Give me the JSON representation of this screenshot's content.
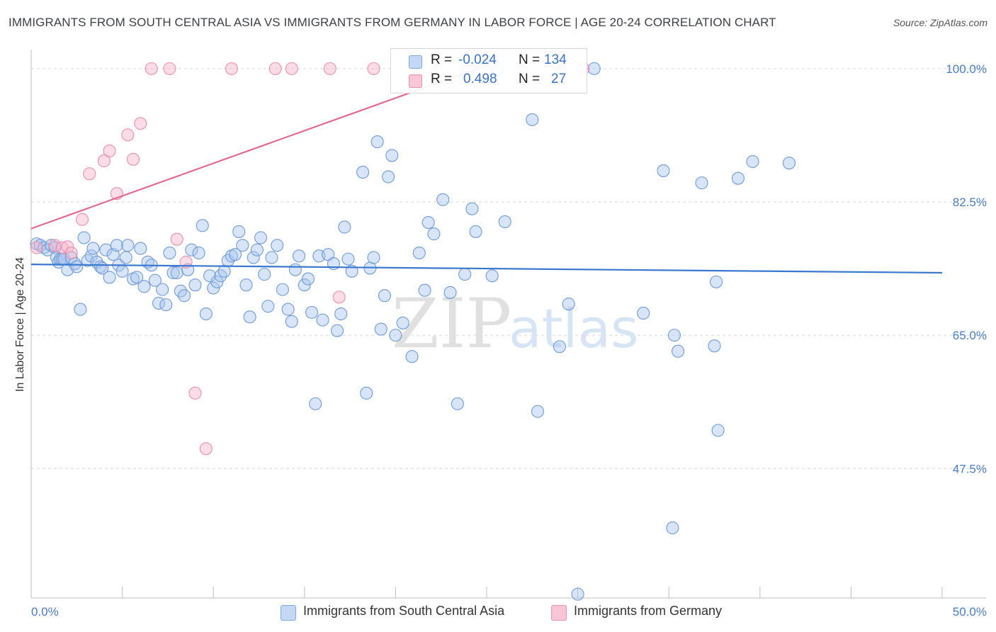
{
  "title": "IMMIGRANTS FROM SOUTH CENTRAL ASIA VS IMMIGRANTS FROM GERMANY IN LABOR FORCE | AGE 20-24 CORRELATION CHART",
  "source": "Source: ZipAtlas.com",
  "watermark": {
    "zip": "ZIP",
    "atlas": "atlas"
  },
  "legend": {
    "rows": [
      {
        "r_label": "R =",
        "r_value": "-0.024",
        "n_label": "N =",
        "n_value": "134"
      },
      {
        "r_label": "R =",
        "r_value": "0.498",
        "n_label": "N =",
        "n_value": "27"
      }
    ]
  },
  "bottom_legend": [
    "Immigrants from South Central Asia",
    "Immigrants from Germany"
  ],
  "chart_data": {
    "type": "scatter",
    "xlabel": "",
    "ylabel": "In Labor Force | Age 20-24",
    "xlim": [
      0,
      50
    ],
    "ylim": [
      30.5,
      102.5
    ],
    "x_tick_labels": [
      {
        "value": 0,
        "label": "0.0%"
      },
      {
        "value": 50,
        "label": "50.0%"
      }
    ],
    "y_tick_labels": [
      {
        "value": 100,
        "label": "100.0%"
      },
      {
        "value": 82.5,
        "label": "82.5%"
      },
      {
        "value": 65,
        "label": "65.0%"
      },
      {
        "value": 47.5,
        "label": "47.5%"
      }
    ],
    "grid": "horizontal-dashed",
    "legend_position": "top-center",
    "series": [
      {
        "name": "Immigrants from South Central Asia",
        "color": "#8fb4e8",
        "line_color": "#3a78d0",
        "trend": {
          "x": [
            0,
            50
          ],
          "y": [
            74.3,
            73.2
          ]
        },
        "points": [
          [
            0.3,
            77.0
          ],
          [
            0.5,
            76.8
          ],
          [
            0.7,
            76.5
          ],
          [
            0.9,
            76.2
          ],
          [
            1.1,
            76.8
          ],
          [
            1.3,
            76.5
          ],
          [
            1.4,
            75.2
          ],
          [
            1.5,
            74.6
          ],
          [
            1.6,
            75.0
          ],
          [
            1.7,
            75.0
          ],
          [
            1.8,
            75.0
          ],
          [
            2.0,
            73.6
          ],
          [
            2.2,
            75.2
          ],
          [
            2.4,
            74.4
          ],
          [
            2.5,
            74.0
          ],
          [
            2.7,
            68.4
          ],
          [
            2.9,
            77.8
          ],
          [
            3.1,
            74.8
          ],
          [
            3.3,
            75.4
          ],
          [
            3.4,
            76.4
          ],
          [
            3.6,
            74.6
          ],
          [
            3.8,
            74.0
          ],
          [
            3.9,
            73.8
          ],
          [
            4.1,
            76.2
          ],
          [
            4.3,
            72.6
          ],
          [
            4.5,
            75.6
          ],
          [
            4.7,
            76.8
          ],
          [
            4.8,
            74.2
          ],
          [
            5.0,
            73.4
          ],
          [
            5.2,
            75.2
          ],
          [
            5.3,
            76.8
          ],
          [
            5.6,
            72.4
          ],
          [
            5.8,
            72.6
          ],
          [
            6.0,
            76.4
          ],
          [
            6.2,
            71.4
          ],
          [
            6.4,
            74.6
          ],
          [
            6.6,
            74.2
          ],
          [
            6.8,
            72.2
          ],
          [
            7.0,
            69.2
          ],
          [
            7.2,
            71.0
          ],
          [
            7.4,
            69.0
          ],
          [
            7.6,
            75.8
          ],
          [
            7.8,
            73.2
          ],
          [
            8.0,
            73.2
          ],
          [
            8.2,
            70.8
          ],
          [
            8.4,
            70.2
          ],
          [
            8.6,
            73.6
          ],
          [
            8.8,
            76.2
          ],
          [
            9.0,
            71.6
          ],
          [
            9.2,
            75.8
          ],
          [
            9.4,
            79.4
          ],
          [
            9.6,
            67.8
          ],
          [
            9.8,
            72.8
          ],
          [
            10.0,
            71.2
          ],
          [
            10.2,
            72.0
          ],
          [
            10.4,
            72.8
          ],
          [
            10.6,
            73.4
          ],
          [
            10.8,
            74.8
          ],
          [
            11.0,
            75.4
          ],
          [
            11.2,
            75.6
          ],
          [
            11.4,
            78.6
          ],
          [
            11.6,
            76.8
          ],
          [
            11.8,
            71.6
          ],
          [
            12.0,
            67.4
          ],
          [
            12.2,
            75.2
          ],
          [
            12.4,
            76.2
          ],
          [
            12.6,
            77.8
          ],
          [
            12.8,
            73.0
          ],
          [
            13.0,
            68.8
          ],
          [
            13.2,
            75.2
          ],
          [
            13.5,
            76.8
          ],
          [
            13.8,
            71.0
          ],
          [
            14.1,
            68.4
          ],
          [
            14.3,
            66.8
          ],
          [
            14.5,
            73.6
          ],
          [
            14.7,
            75.4
          ],
          [
            15.0,
            71.6
          ],
          [
            15.2,
            72.4
          ],
          [
            15.4,
            68.0
          ],
          [
            15.6,
            56.0
          ],
          [
            15.8,
            75.4
          ],
          [
            16.0,
            67.0
          ],
          [
            16.3,
            75.6
          ],
          [
            16.6,
            74.4
          ],
          [
            16.8,
            65.6
          ],
          [
            17.0,
            67.8
          ],
          [
            17.2,
            79.2
          ],
          [
            17.4,
            75.0
          ],
          [
            17.6,
            73.4
          ],
          [
            18.2,
            86.4
          ],
          [
            18.4,
            57.4
          ],
          [
            18.6,
            73.8
          ],
          [
            18.8,
            75.2
          ],
          [
            19.0,
            90.4
          ],
          [
            19.2,
            65.8
          ],
          [
            19.4,
            70.2
          ],
          [
            19.6,
            85.8
          ],
          [
            19.8,
            88.6
          ],
          [
            20.0,
            65.0
          ],
          [
            20.4,
            66.6
          ],
          [
            20.9,
            62.2
          ],
          [
            21.3,
            75.8
          ],
          [
            21.6,
            70.9
          ],
          [
            21.8,
            79.8
          ],
          [
            22.1,
            78.3
          ],
          [
            22.6,
            82.8
          ],
          [
            23.0,
            70.6
          ],
          [
            23.4,
            56.0
          ],
          [
            23.8,
            73.0
          ],
          [
            24.2,
            81.6
          ],
          [
            24.4,
            78.6
          ],
          [
            25.3,
            72.8
          ],
          [
            25.6,
            100.0
          ],
          [
            26.0,
            79.9
          ],
          [
            27.5,
            93.3
          ],
          [
            27.8,
            55.0
          ],
          [
            29.0,
            63.5
          ],
          [
            29.5,
            69.1
          ],
          [
            30.9,
            100.0
          ],
          [
            33.6,
            67.9
          ],
          [
            34.7,
            86.6
          ],
          [
            35.2,
            39.7
          ],
          [
            35.3,
            65.0
          ],
          [
            35.5,
            62.9
          ],
          [
            36.8,
            85.0
          ],
          [
            37.5,
            63.6
          ],
          [
            37.6,
            72.0
          ],
          [
            37.7,
            52.5
          ],
          [
            38.8,
            85.6
          ],
          [
            39.6,
            87.8
          ],
          [
            41.6,
            87.6
          ],
          [
            30.0,
            31.0
          ]
        ]
      },
      {
        "name": "Immigrants from Germany",
        "color": "#f2a9c2",
        "line_color": "#e06a94",
        "trend": {
          "x": [
            0,
            24.5
          ],
          "y": [
            79.0,
            100.0
          ]
        },
        "points": [
          [
            0.3,
            76.5
          ],
          [
            1.3,
            76.8
          ],
          [
            1.7,
            76.5
          ],
          [
            2.0,
            76.6
          ],
          [
            2.2,
            75.8
          ],
          [
            2.8,
            80.2
          ],
          [
            3.2,
            86.2
          ],
          [
            4.0,
            87.9
          ],
          [
            4.3,
            89.2
          ],
          [
            4.7,
            83.6
          ],
          [
            5.3,
            91.3
          ],
          [
            5.6,
            88.1
          ],
          [
            6.0,
            92.8
          ],
          [
            6.6,
            100.0
          ],
          [
            7.6,
            100.0
          ],
          [
            8.0,
            77.6
          ],
          [
            8.5,
            74.6
          ],
          [
            9.0,
            57.4
          ],
          [
            9.6,
            50.1
          ],
          [
            11.0,
            100.0
          ],
          [
            13.4,
            100.0
          ],
          [
            14.3,
            100.0
          ],
          [
            16.4,
            100.0
          ],
          [
            16.9,
            70.0
          ],
          [
            18.8,
            100.0
          ],
          [
            24.0,
            100.0
          ],
          [
            30.3,
            100.0
          ]
        ]
      }
    ]
  }
}
